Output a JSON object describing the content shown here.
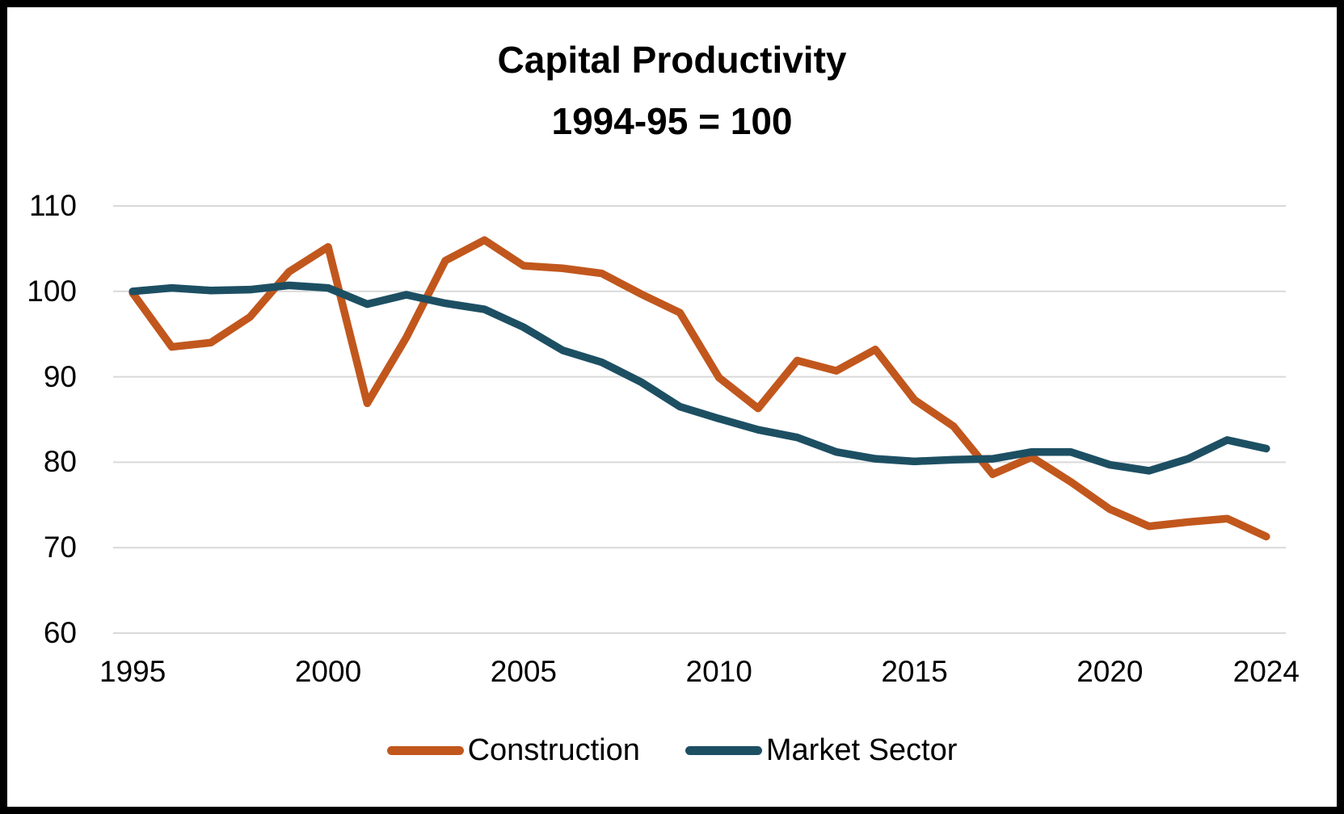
{
  "window": {
    "background_color": "#ffffff",
    "border_color": "#000000",
    "text_color": "#000000"
  },
  "chart_data": {
    "type": "line",
    "title": "Capital Productivity",
    "subtitle": "1994-95 = 100",
    "x": [
      1995,
      1996,
      1997,
      1998,
      1999,
      2000,
      2001,
      2002,
      2003,
      2004,
      2005,
      2006,
      2007,
      2008,
      2009,
      2010,
      2011,
      2012,
      2013,
      2014,
      2015,
      2016,
      2017,
      2018,
      2019,
      2020,
      2021,
      2022,
      2023,
      2024
    ],
    "series": [
      {
        "name": "Construction",
        "color": "#C1571D",
        "values": [
          99.8,
          93.5,
          94.0,
          97.0,
          102.3,
          105.2,
          86.9,
          94.6,
          103.6,
          106.0,
          103.0,
          102.7,
          102.1,
          99.7,
          97.5,
          89.9,
          86.3,
          91.9,
          90.7,
          93.2,
          87.3,
          84.2,
          78.6,
          80.6,
          77.7,
          74.5,
          72.5,
          73.0,
          73.4,
          71.3
        ]
      },
      {
        "name": "Market Sector",
        "color": "#1D4F63",
        "values": [
          100.0,
          100.4,
          100.1,
          100.2,
          100.7,
          100.4,
          98.5,
          99.6,
          98.6,
          97.9,
          95.8,
          93.1,
          91.7,
          89.4,
          86.5,
          85.1,
          83.8,
          82.9,
          81.2,
          80.4,
          80.1,
          80.3,
          80.4,
          81.2,
          81.2,
          79.7,
          79.0,
          80.4,
          82.6,
          81.6
        ]
      }
    ],
    "ylim": [
      60,
      110
    ],
    "yticks": [
      60,
      70,
      80,
      90,
      100,
      110
    ],
    "xticks": [
      1995,
      2000,
      2005,
      2010,
      2015,
      2020,
      2024
    ],
    "grid": "horizontal-only",
    "gridline_color": "#D9D9D9",
    "legend_position": "bottom",
    "line_width": 9.5
  }
}
